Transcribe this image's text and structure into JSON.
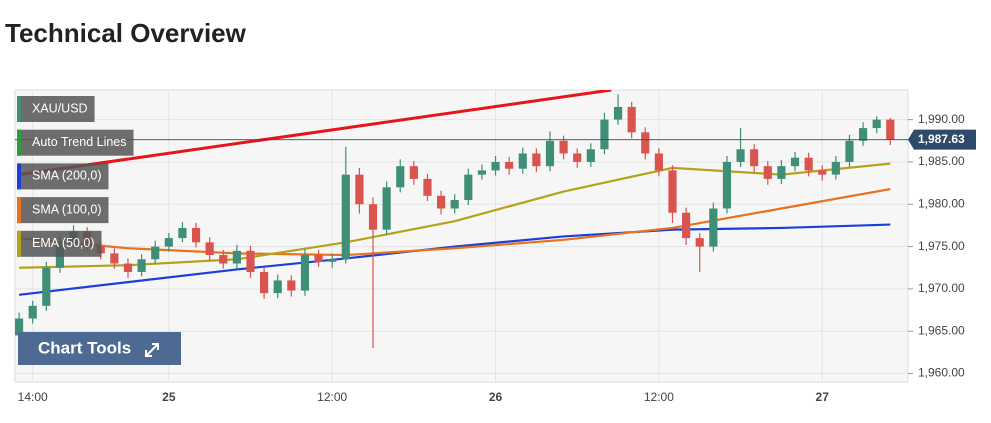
{
  "chart_data": {
    "type": "candlestick",
    "title": "Technical Overview",
    "symbol": "XAU/USD",
    "up_color": "#3f8f78",
    "down_color": "#d9534f",
    "x": [
      -1,
      0,
      1,
      2,
      3,
      4,
      5,
      6,
      7,
      8,
      9,
      10,
      11,
      12,
      13,
      14,
      15,
      16,
      17,
      18,
      19,
      20,
      21,
      22,
      23,
      24,
      25,
      26,
      27,
      28,
      29,
      30,
      31,
      32,
      33,
      34,
      35,
      36,
      37,
      38,
      39,
      40,
      41,
      42,
      43,
      44,
      45,
      46,
      47,
      48,
      49,
      50,
      51,
      52,
      53,
      54,
      55,
      56,
      57,
      58,
      59,
      60,
      61,
      62,
      63
    ],
    "open": [
      1964.5,
      1966.5,
      1968,
      1972.5,
      1975.5,
      1976.8,
      1975,
      1974.2,
      1973,
      1972,
      1973.5,
      1975,
      1976,
      1977.2,
      1975.5,
      1974,
      1973,
      1974.5,
      1972,
      1969.5,
      1971,
      1969.8,
      1974,
      1973.2,
      1973.5,
      1983.5,
      1980,
      1977,
      1982,
      1984.5,
      1983,
      1981,
      1979.5,
      1980.5,
      1983.5,
      1984,
      1985,
      1984.2,
      1986,
      1984.5,
      1987.5,
      1986,
      1985,
      1986.5,
      1990,
      1991.5,
      1988.5,
      1986,
      1984,
      1979,
      1976,
      1975,
      1979.5,
      1985,
      1986.5,
      1984.5,
      1983,
      1984.5,
      1985.5,
      1984,
      1983.5,
      1985,
      1987.5,
      1989,
      1990
    ],
    "high": [
      1967.2,
      1968.6,
      1973.2,
      1976.3,
      1977.5,
      1977.3,
      1975.6,
      1974.8,
      1973.6,
      1974.1,
      1975.7,
      1976.6,
      1977.9,
      1977.8,
      1976.1,
      1974.6,
      1975.2,
      1975.1,
      1972.6,
      1971.7,
      1971.6,
      1974.7,
      1974.6,
      1974.2,
      1986.8,
      1984.3,
      1980.8,
      1982.7,
      1985.3,
      1985.1,
      1983.6,
      1981.6,
      1981.2,
      1984.2,
      1984.7,
      1985.7,
      1985.6,
      1986.7,
      1986.6,
      1988.6,
      1988.1,
      1986.6,
      1987.2,
      1990.8,
      1993,
      1992.1,
      1989.1,
      1986.6,
      1984.6,
      1979.6,
      1976.6,
      1980.2,
      1985.7,
      1989,
      1987.1,
      1985.1,
      1985.2,
      1986.2,
      1986.1,
      1984.6,
      1985.7,
      1988.2,
      1989.7,
      1990.4,
      1990.2
    ],
    "low": [
      1963.8,
      1965.9,
      1967.4,
      1971.9,
      1974.9,
      1974.4,
      1973.5,
      1972.4,
      1971.3,
      1971.5,
      1972.9,
      1974.4,
      1975.5,
      1974.9,
      1973.3,
      1972.4,
      1972.4,
      1971.3,
      1968.8,
      1968.9,
      1969.1,
      1969.2,
      1972.6,
      1972.5,
      1973,
      1978.9,
      1963,
      1976.4,
      1981.4,
      1982.3,
      1980.4,
      1978.8,
      1978.9,
      1979.9,
      1982.9,
      1983.4,
      1983.5,
      1983.6,
      1983.8,
      1983.9,
      1985.3,
      1984.3,
      1984.4,
      1985.9,
      1989.4,
      1987.8,
      1985.3,
      1983.3,
      1977.8,
      1975.2,
      1972,
      1974.4,
      1978.9,
      1984.4,
      1983.8,
      1982.3,
      1982.4,
      1983.9,
      1983.3,
      1982.8,
      1982.9,
      1984.4,
      1986.9,
      1988.4,
      1987
    ],
    "close": [
      1966.5,
      1968,
      1972.5,
      1975.5,
      1976.8,
      1975,
      1974.2,
      1973,
      1972,
      1973.5,
      1975,
      1976,
      1977.2,
      1975.5,
      1974,
      1973,
      1974.5,
      1972,
      1969.5,
      1971,
      1969.8,
      1974,
      1973.2,
      1973.5,
      1983.5,
      1980,
      1977,
      1982,
      1984.5,
      1983,
      1981,
      1979.5,
      1980.5,
      1983.5,
      1984,
      1985,
      1984.2,
      1986,
      1984.5,
      1987.5,
      1986,
      1985,
      1986.5,
      1990,
      1991.5,
      1988.5,
      1986,
      1984,
      1979,
      1976,
      1975,
      1979.5,
      1985,
      1986.5,
      1984.5,
      1983,
      1984.5,
      1985.5,
      1984,
      1983.5,
      1985,
      1987.5,
      1989,
      1990,
      1987.63
    ],
    "last_price": {
      "value": 1987.63,
      "label": "1,987.63"
    },
    "series": [
      {
        "name": "Auto Trend Lines",
        "color": "#e8141b",
        "x": [
          -1,
          42.5
        ],
        "values": [
          1983.5,
          1993.5
        ]
      },
      {
        "name": "SMA (200,0)",
        "color": "#1b3fd8",
        "x": [
          -1,
          7,
          15,
          23,
          31,
          39,
          47,
          55,
          63
        ],
        "values": [
          1969.3,
          1970.8,
          1972.3,
          1973.6,
          1975,
          1976.2,
          1977,
          1977.2,
          1977.6
        ]
      },
      {
        "name": "SMA (100,0)",
        "color": "#e8731e",
        "x": [
          -1,
          7,
          15,
          23,
          31,
          39,
          47,
          55,
          63
        ],
        "values": [
          1976,
          1974.8,
          1974.2,
          1974,
          1974.8,
          1975.8,
          1977.2,
          1979.5,
          1981.8
        ]
      },
      {
        "name": "EMA (50,0)",
        "color": "#b5a21c",
        "x": [
          -1,
          7,
          15,
          23,
          31,
          39,
          47,
          55,
          63
        ],
        "values": [
          1972.5,
          1972.8,
          1973.5,
          1975.5,
          1978,
          1981.5,
          1984.3,
          1983.5,
          1984.8
        ]
      }
    ],
    "xlim": [
      -1.3,
      64.3
    ],
    "xticks": [
      {
        "value": 0,
        "label": "14:00"
      },
      {
        "value": 10,
        "label": "25"
      },
      {
        "value": 22,
        "label": "12:00"
      },
      {
        "value": 34,
        "label": "26"
      },
      {
        "value": 46,
        "label": "12:00"
      },
      {
        "value": 58,
        "label": "27"
      }
    ],
    "ylim": [
      1959,
      1993.5
    ],
    "yticks": [
      {
        "value": 1960,
        "label": "1,960.00"
      },
      {
        "value": 1965,
        "label": "1,965.00"
      },
      {
        "value": 1970,
        "label": "1,970.00"
      },
      {
        "value": 1975,
        "label": "1,975.00"
      },
      {
        "value": 1980,
        "label": "1,980.00"
      },
      {
        "value": 1985,
        "label": "1,985.00"
      },
      {
        "value": 1990,
        "label": "1,990.00"
      }
    ],
    "grid": true,
    "chart_tools": "Chart Tools"
  }
}
